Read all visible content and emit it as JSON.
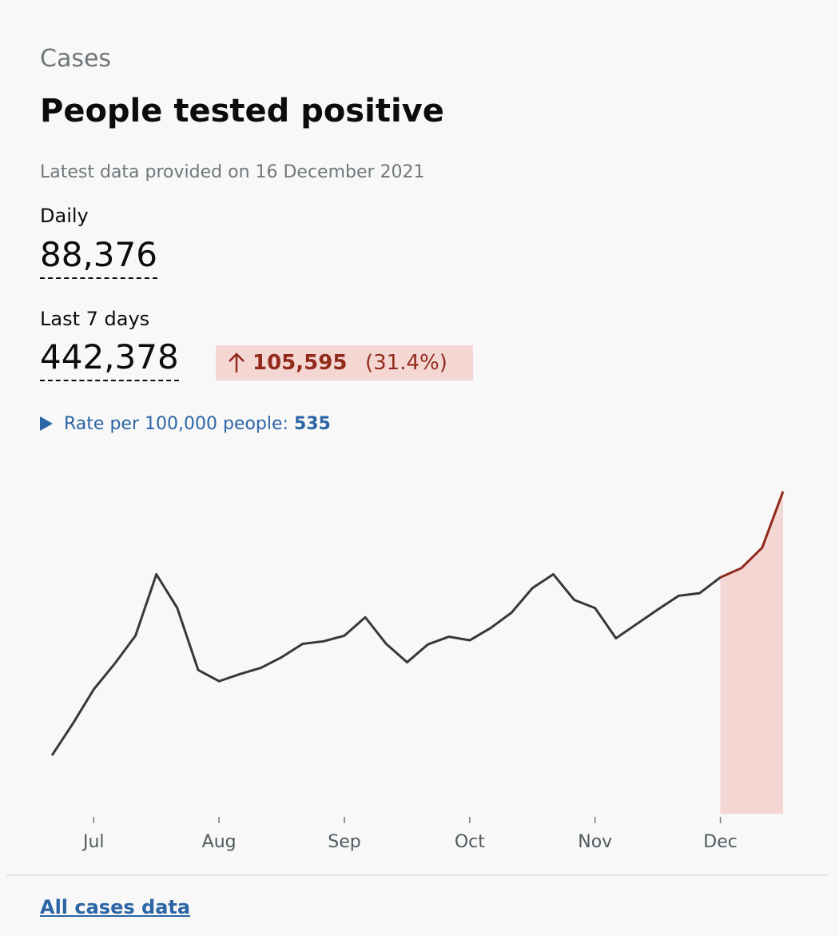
{
  "header": {
    "section": "Cases",
    "title": "People tested positive",
    "updated": "Latest data provided on 16 December 2021"
  },
  "metrics": {
    "daily": {
      "label": "Daily",
      "value": "88,376"
    },
    "weekly": {
      "label": "Last 7 days",
      "value": "442,378",
      "change": "105,595",
      "change_percent": "(31.4%)"
    }
  },
  "rate": {
    "label": "Rate per 100,000 people:",
    "value": "535"
  },
  "chart_data": {
    "type": "line",
    "categories": [
      null,
      null,
      "Jul",
      null,
      null,
      null,
      null,
      null,
      "Aug",
      null,
      null,
      null,
      null,
      null,
      "Sep",
      null,
      null,
      null,
      null,
      null,
      "Oct",
      null,
      null,
      null,
      null,
      null,
      "Nov",
      null,
      null,
      null,
      null,
      null,
      "Dec",
      null,
      null,
      null
    ],
    "series": [
      {
        "color": "#383838",
        "highlight_color": "#922a1c",
        "values": [
          11400,
          17600,
          24300,
          29300,
          34800,
          46800,
          40200,
          28100,
          25900,
          27300,
          28500,
          30600,
          33200,
          33700,
          34800,
          38400,
          33200,
          29600,
          33100,
          34600,
          33900,
          36300,
          39300,
          44100,
          46800,
          41800,
          40200,
          34300,
          37100,
          39900,
          42600,
          43100,
          46200,
          48000,
          52000,
          63000
        ]
      }
    ],
    "highlight_fill": "#f4d6d3",
    "ylim": [
      0,
      65000
    ]
  },
  "link": "All cases data"
}
